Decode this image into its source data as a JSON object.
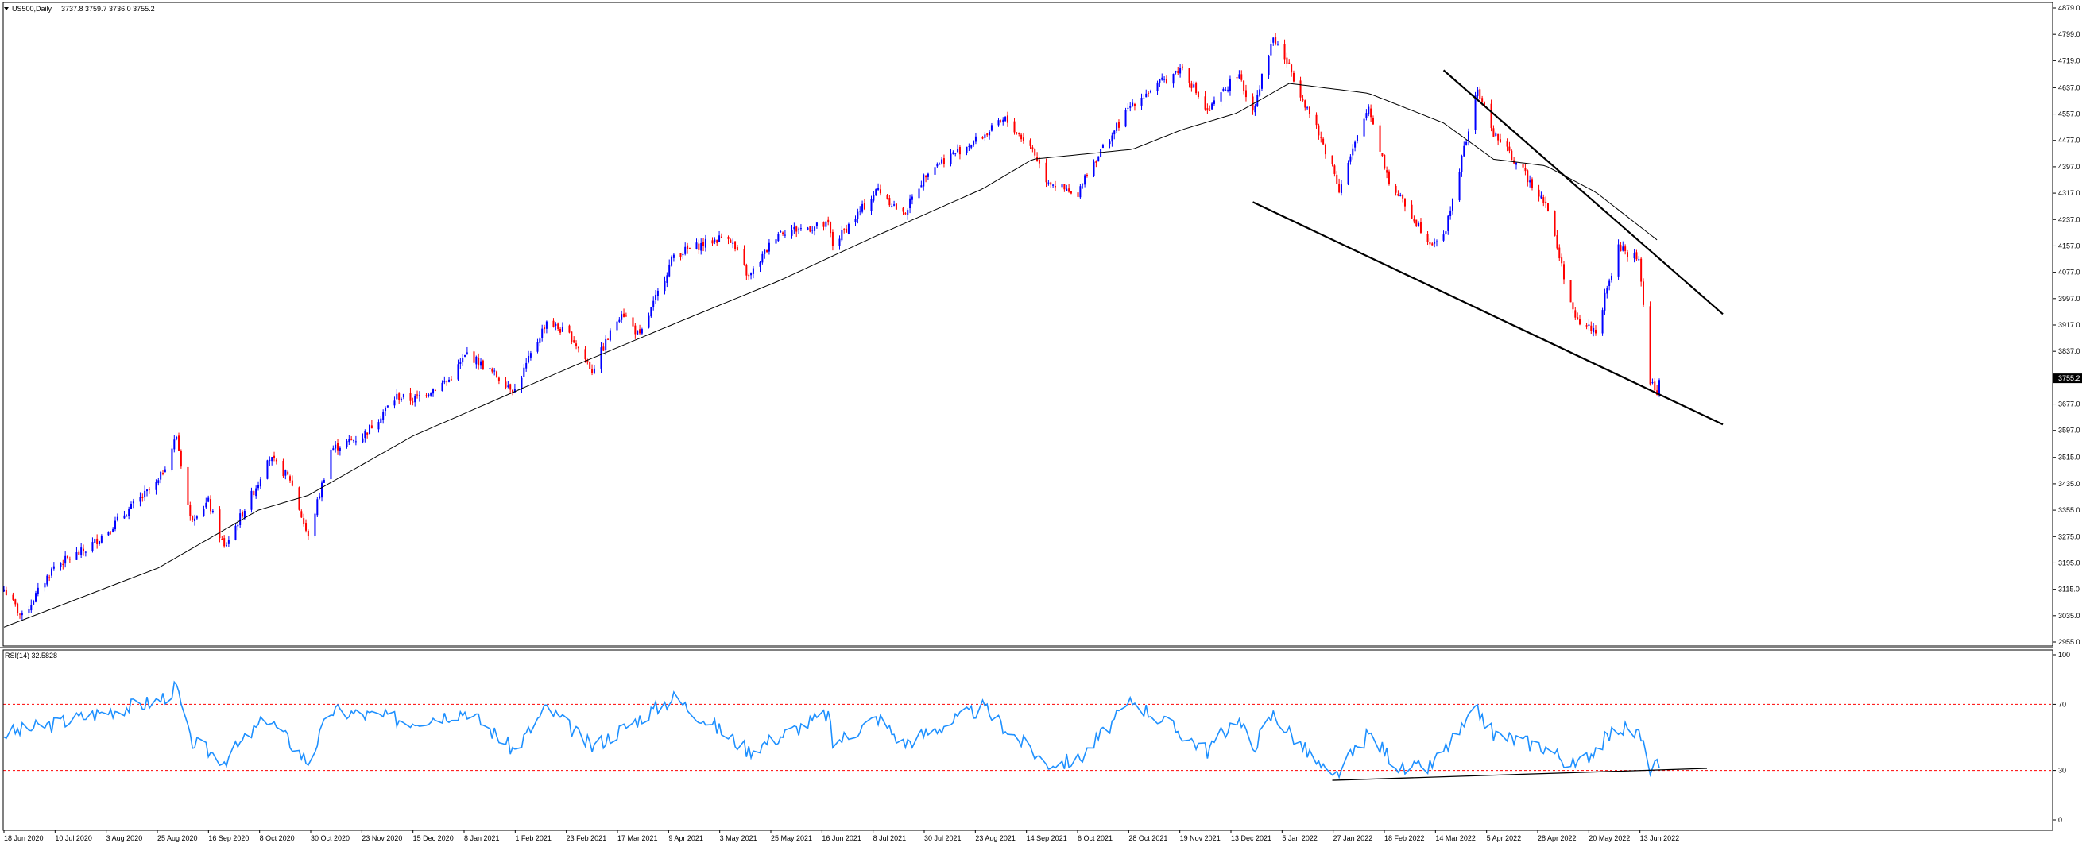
{
  "window": {
    "symbol_label": "US500,Daily",
    "ohlc_label": "3737.8 3759.7 3736.0 3755.2"
  },
  "colors": {
    "up_candle": "#0000ff",
    "down_candle": "#ff0000",
    "moving_average": "#000000",
    "trendline": "#000000",
    "rsi_line": "#1e90ff",
    "rsi_levels": "#ff0000",
    "current_price_box": "#000000",
    "frame": "#000000"
  },
  "chart_data": [
    {
      "type": "candlestick",
      "title": "US500,Daily",
      "subtitle": "3737.8 3759.7 3736.0 3755.2",
      "x_tick_labels": [
        "18 Jun 2020",
        "10 Jul 2020",
        "3 Aug 2020",
        "25 Aug 2020",
        "16 Sep 2020",
        "8 Oct 2020",
        "30 Oct 2020",
        "23 Nov 2020",
        "15 Dec 2020",
        "8 Jan 2021",
        "1 Feb 2021",
        "23 Feb 2021",
        "17 Mar 2021",
        "9 Apr 2021",
        "3 May 2021",
        "25 May 2021",
        "16 Jun 2021",
        "8 Jul 2021",
        "30 Jul 2021",
        "23 Aug 2021",
        "14 Sep 2021",
        "6 Oct 2021",
        "28 Oct 2021",
        "19 Nov 2021",
        "13 Dec 2021",
        "5 Jan 2022",
        "27 Jan 2022",
        "18 Feb 2022",
        "14 Mar 2022",
        "5 Apr 2022",
        "28 Apr 2022",
        "20 May 2022",
        "13 Jun 2022"
      ],
      "y_tick_labels": [
        "4879.0",
        "4799.0",
        "4719.0",
        "4637.0",
        "4557.0",
        "4477.0",
        "4397.0",
        "4317.0",
        "4237.0",
        "4157.0",
        "4077.0",
        "3997.0",
        "3917.0",
        "3837.0",
        "3755.2",
        "3677.0",
        "3597.0",
        "3515.0",
        "3435.0",
        "3355.0",
        "3275.0",
        "3195.0",
        "3115.0",
        "3035.0",
        "2955.0"
      ],
      "ylim": [
        2955,
        4879
      ],
      "grid": false,
      "current_price": 3755.2,
      "close_path_anchors": [
        {
          "date": "2020-06-18",
          "close": 3115
        },
        {
          "date": "2020-06-26",
          "close": 3030
        },
        {
          "date": "2020-07-10",
          "close": 3185
        },
        {
          "date": "2020-07-24",
          "close": 3235
        },
        {
          "date": "2020-08-03",
          "close": 3295
        },
        {
          "date": "2020-08-14",
          "close": 3370
        },
        {
          "date": "2020-08-25",
          "close": 3440
        },
        {
          "date": "2020-09-02",
          "close": 3580
        },
        {
          "date": "2020-09-08",
          "close": 3330
        },
        {
          "date": "2020-09-16",
          "close": 3380
        },
        {
          "date": "2020-09-23",
          "close": 3240
        },
        {
          "date": "2020-10-02",
          "close": 3360
        },
        {
          "date": "2020-10-08",
          "close": 3440
        },
        {
          "date": "2020-10-12",
          "close": 3520
        },
        {
          "date": "2020-10-22",
          "close": 3450
        },
        {
          "date": "2020-10-30",
          "close": 3270
        },
        {
          "date": "2020-11-09",
          "close": 3540
        },
        {
          "date": "2020-11-23",
          "close": 3580
        },
        {
          "date": "2020-12-08",
          "close": 3700
        },
        {
          "date": "2020-12-15",
          "close": 3690
        },
        {
          "date": "2020-12-31",
          "close": 3750
        },
        {
          "date": "2021-01-08",
          "close": 3830
        },
        {
          "date": "2021-01-29",
          "close": 3720
        },
        {
          "date": "2021-02-12",
          "close": 3930
        },
        {
          "date": "2021-02-23",
          "close": 3880
        },
        {
          "date": "2021-03-04",
          "close": 3780
        },
        {
          "date": "2021-03-17",
          "close": 3960
        },
        {
          "date": "2021-03-25",
          "close": 3880
        },
        {
          "date": "2021-04-09",
          "close": 4130
        },
        {
          "date": "2021-05-03",
          "close": 4190
        },
        {
          "date": "2021-05-12",
          "close": 4060
        },
        {
          "date": "2021-05-25",
          "close": 4200
        },
        {
          "date": "2021-06-16",
          "close": 4220
        },
        {
          "date": "2021-06-18",
          "close": 4160
        },
        {
          "date": "2021-07-08",
          "close": 4330
        },
        {
          "date": "2021-07-19",
          "close": 4250
        },
        {
          "date": "2021-07-30",
          "close": 4390
        },
        {
          "date": "2021-08-23",
          "close": 4490
        },
        {
          "date": "2021-09-02",
          "close": 4540
        },
        {
          "date": "2021-09-14",
          "close": 4450
        },
        {
          "date": "2021-09-20",
          "close": 4360
        },
        {
          "date": "2021-10-04",
          "close": 4300
        },
        {
          "date": "2021-10-06",
          "close": 4360
        },
        {
          "date": "2021-10-28",
          "close": 4590
        },
        {
          "date": "2021-11-19",
          "close": 4700
        },
        {
          "date": "2021-11-30",
          "close": 4560
        },
        {
          "date": "2021-12-13",
          "close": 4680
        },
        {
          "date": "2021-12-20",
          "close": 4570
        },
        {
          "date": "2021-12-29",
          "close": 4790
        },
        {
          "date": "2022-01-05",
          "close": 4700
        },
        {
          "date": "2022-01-24",
          "close": 4400
        },
        {
          "date": "2022-01-27",
          "close": 4330
        },
        {
          "date": "2022-02-09",
          "close": 4580
        },
        {
          "date": "2022-02-18",
          "close": 4350
        },
        {
          "date": "2022-03-08",
          "close": 4170
        },
        {
          "date": "2022-03-14",
          "close": 4180
        },
        {
          "date": "2022-03-29",
          "close": 4630
        },
        {
          "date": "2022-04-05",
          "close": 4500
        },
        {
          "date": "2022-04-28",
          "close": 4290
        },
        {
          "date": "2022-05-11",
          "close": 3930
        },
        {
          "date": "2022-05-20",
          "close": 3900
        },
        {
          "date": "2022-05-30",
          "close": 4150
        },
        {
          "date": "2022-06-08",
          "close": 4120
        },
        {
          "date": "2022-06-13",
          "close": 3750
        },
        {
          "date": "2022-06-16",
          "close": 3700
        },
        {
          "date": "2022-06-17",
          "close": 3755.2
        }
      ],
      "moving_average_anchors": [
        {
          "date": "2020-06-18",
          "value": 3000
        },
        {
          "date": "2020-08-25",
          "value": 3180
        },
        {
          "date": "2020-10-08",
          "value": 3355
        },
        {
          "date": "2020-10-30",
          "value": 3400
        },
        {
          "date": "2020-12-15",
          "value": 3580
        },
        {
          "date": "2021-02-23",
          "value": 3790
        },
        {
          "date": "2021-04-09",
          "value": 3920
        },
        {
          "date": "2021-05-25",
          "value": 4050
        },
        {
          "date": "2021-07-08",
          "value": 4190
        },
        {
          "date": "2021-08-23",
          "value": 4330
        },
        {
          "date": "2021-09-14",
          "value": 4420
        },
        {
          "date": "2021-10-28",
          "value": 4450
        },
        {
          "date": "2021-11-19",
          "value": 4510
        },
        {
          "date": "2021-12-13",
          "value": 4560
        },
        {
          "date": "2022-01-05",
          "value": 4650
        },
        {
          "date": "2022-02-09",
          "value": 4620
        },
        {
          "date": "2022-03-14",
          "value": 4530
        },
        {
          "date": "2022-04-05",
          "value": 4420
        },
        {
          "date": "2022-04-28",
          "value": 4400
        },
        {
          "date": "2022-05-20",
          "value": 4320
        },
        {
          "date": "2022-06-17",
          "value": 4170
        }
      ],
      "trendlines": [
        {
          "name": "upper",
          "from": {
            "date": "2022-03-14",
            "value": 4690
          },
          "to": {
            "date": "2022-07-15",
            "value": 3950
          }
        },
        {
          "name": "lower",
          "from": {
            "date": "2021-12-20",
            "value": 4290
          },
          "to": {
            "date": "2022-07-15",
            "value": 3615
          }
        }
      ]
    },
    {
      "type": "line",
      "title": "RSI(14) 32.5828",
      "y_tick_labels": [
        "100",
        "70",
        "30",
        "0"
      ],
      "ylim": [
        0,
        100
      ],
      "levels": [
        70,
        30
      ],
      "current_value": 32.5828,
      "rsi_anchors": [
        {
          "date": "2020-06-18",
          "value": 52
        },
        {
          "date": "2020-07-10",
          "value": 58
        },
        {
          "date": "2020-08-03",
          "value": 66
        },
        {
          "date": "2020-08-25",
          "value": 72
        },
        {
          "date": "2020-09-02",
          "value": 80
        },
        {
          "date": "2020-09-08",
          "value": 48
        },
        {
          "date": "2020-09-23",
          "value": 36
        },
        {
          "date": "2020-10-12",
          "value": 62
        },
        {
          "date": "2020-10-30",
          "value": 35
        },
        {
          "date": "2020-11-09",
          "value": 66
        },
        {
          "date": "2020-12-15",
          "value": 60
        },
        {
          "date": "2021-01-08",
          "value": 66
        },
        {
          "date": "2021-01-29",
          "value": 42
        },
        {
          "date": "2021-02-12",
          "value": 68
        },
        {
          "date": "2021-03-04",
          "value": 44
        },
        {
          "date": "2021-04-09",
          "value": 74
        },
        {
          "date": "2021-05-12",
          "value": 42
        },
        {
          "date": "2021-06-16",
          "value": 64
        },
        {
          "date": "2021-06-18",
          "value": 46
        },
        {
          "date": "2021-07-08",
          "value": 62
        },
        {
          "date": "2021-07-19",
          "value": 46
        },
        {
          "date": "2021-08-23",
          "value": 68
        },
        {
          "date": "2021-09-20",
          "value": 34
        },
        {
          "date": "2021-10-04",
          "value": 36
        },
        {
          "date": "2021-10-28",
          "value": 72
        },
        {
          "date": "2021-11-30",
          "value": 42
        },
        {
          "date": "2021-12-13",
          "value": 62
        },
        {
          "date": "2021-12-20",
          "value": 44
        },
        {
          "date": "2021-12-29",
          "value": 64
        },
        {
          "date": "2022-01-24",
          "value": 24
        },
        {
          "date": "2022-02-09",
          "value": 52
        },
        {
          "date": "2022-02-24",
          "value": 30
        },
        {
          "date": "2022-03-08",
          "value": 32
        },
        {
          "date": "2022-03-29",
          "value": 66
        },
        {
          "date": "2022-04-05",
          "value": 52
        },
        {
          "date": "2022-04-28",
          "value": 44
        },
        {
          "date": "2022-05-11",
          "value": 32
        },
        {
          "date": "2022-05-30",
          "value": 56
        },
        {
          "date": "2022-06-08",
          "value": 52
        },
        {
          "date": "2022-06-13",
          "value": 32
        },
        {
          "date": "2022-06-17",
          "value": 32.5828
        }
      ],
      "trendline": {
        "from": {
          "date": "2022-01-24",
          "value": 24
        },
        "to": {
          "date": "2022-06-17",
          "value": 31
        }
      }
    }
  ]
}
